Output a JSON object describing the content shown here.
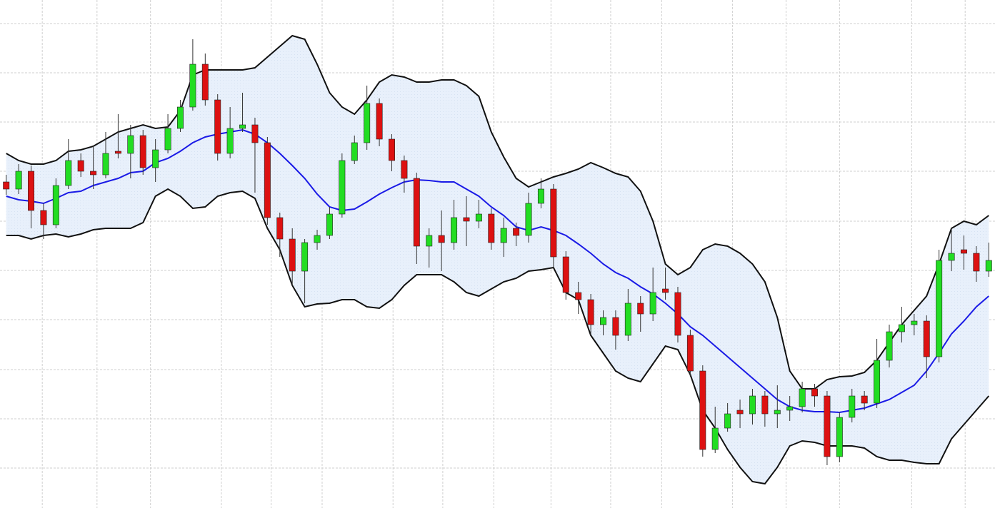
{
  "chart_data": {
    "type": "candlestick",
    "xlim": [
      -0.5,
      79.5
    ],
    "ylim": [
      0,
      712
    ],
    "xticks": [
      2.9,
      7.3,
      11.6,
      17.3,
      21.3,
      25.4,
      31.1,
      35.1,
      39.2,
      43.8,
      48.6,
      52.7,
      58.4,
      62.7,
      67.0,
      72.8,
      77.1
    ],
    "yticks": [
      56,
      125,
      194,
      264,
      333,
      402,
      472,
      541,
      610,
      679
    ],
    "grid": true,
    "up_color": "#22dd22",
    "down_color": "#dd1111",
    "open": [
      457,
      447,
      472,
      417,
      397,
      452,
      487,
      472,
      467,
      500,
      497,
      522,
      477,
      502,
      532,
      562,
      622,
      572,
      497,
      532,
      537,
      512,
      407,
      377,
      332,
      372,
      382,
      412,
      487,
      512,
      567,
      517,
      487,
      462,
      367,
      382,
      372,
      407,
      402,
      412,
      372,
      392,
      382,
      427,
      447,
      352,
      302,
      292,
      257,
      267,
      242,
      287,
      272,
      307,
      302,
      242,
      192,
      82,
      112,
      137,
      132,
      157,
      132,
      137,
      142,
      167,
      157,
      72,
      127,
      157,
      147,
      207,
      247,
      257,
      262,
      212,
      347,
      362,
      357,
      332
    ],
    "high": [
      467,
      482,
      480,
      427,
      462,
      517,
      497,
      507,
      527,
      552,
      537,
      530,
      517,
      552,
      572,
      657,
      637,
      580,
      562,
      582,
      547,
      520,
      414,
      392,
      377,
      390,
      422,
      497,
      522,
      592,
      574,
      524,
      494,
      470,
      392,
      417,
      432,
      437,
      432,
      420,
      407,
      400,
      442,
      462,
      454,
      360,
      317,
      300,
      277,
      277,
      307,
      297,
      337,
      337,
      310,
      250,
      200,
      142,
      147,
      152,
      167,
      164,
      172,
      157,
      177,
      174,
      164,
      134,
      167,
      164,
      237,
      257,
      282,
      272,
      270,
      362,
      392,
      382,
      367,
      372
    ],
    "low": [
      439,
      440,
      392,
      377,
      392,
      447,
      464,
      447,
      462,
      490,
      462,
      467,
      457,
      497,
      527,
      557,
      564,
      487,
      490,
      527,
      442,
      397,
      352,
      312,
      287,
      362,
      377,
      407,
      482,
      502,
      507,
      472,
      442,
      342,
      337,
      332,
      362,
      367,
      392,
      362,
      352,
      367,
      372,
      420,
      337,
      292,
      272,
      242,
      242,
      222,
      234,
      247,
      262,
      292,
      232,
      184,
      72,
      77,
      107,
      112,
      117,
      114,
      112,
      122,
      134,
      142,
      60,
      64,
      120,
      137,
      140,
      197,
      232,
      242,
      182,
      204,
      332,
      334,
      317,
      324
    ],
    "close": [
      447,
      472,
      417,
      397,
      452,
      487,
      472,
      467,
      497,
      497,
      522,
      477,
      502,
      532,
      562,
      622,
      572,
      497,
      532,
      537,
      512,
      407,
      377,
      332,
      372,
      382,
      412,
      487,
      512,
      567,
      517,
      487,
      462,
      367,
      382,
      372,
      407,
      402,
      412,
      372,
      392,
      382,
      427,
      447,
      352,
      302,
      292,
      257,
      267,
      242,
      287,
      272,
      302,
      302,
      242,
      192,
      82,
      112,
      132,
      132,
      157,
      132,
      137,
      142,
      167,
      157,
      72,
      127,
      157,
      147,
      207,
      247,
      257,
      262,
      212,
      347,
      357,
      357,
      332,
      347
    ],
    "bands": {
      "color": "#111111",
      "middle_color": "#1a1ae6",
      "fill": "#e8f0fb",
      "upper": [
        497,
        487,
        482,
        482,
        487,
        500,
        502,
        507,
        517,
        527,
        532,
        537,
        532,
        534,
        557,
        607,
        614,
        614,
        614,
        614,
        617,
        632,
        647,
        662,
        657,
        622,
        582,
        562,
        552,
        572,
        597,
        607,
        604,
        597,
        597,
        600,
        600,
        592,
        577,
        527,
        492,
        462,
        450,
        457,
        464,
        469,
        475,
        484,
        477,
        469,
        464,
        444,
        402,
        342,
        327,
        337,
        362,
        370,
        367,
        357,
        342,
        317,
        267,
        192,
        167,
        167,
        180,
        184,
        185,
        190,
        207,
        232,
        257,
        277,
        297,
        342,
        392,
        402,
        397,
        410
      ],
      "middle": [
        437,
        432,
        430,
        427,
        434,
        442,
        444,
        452,
        457,
        462,
        470,
        472,
        484,
        490,
        500,
        512,
        520,
        524,
        527,
        530,
        524,
        512,
        497,
        480,
        462,
        440,
        422,
        417,
        419,
        429,
        440,
        449,
        457,
        460,
        459,
        457,
        457,
        447,
        437,
        422,
        410,
        394,
        389,
        394,
        389,
        382,
        370,
        357,
        342,
        330,
        322,
        310,
        300,
        287,
        272,
        254,
        242,
        227,
        212,
        197,
        182,
        167,
        152,
        142,
        137,
        135,
        135,
        134,
        137,
        140,
        146,
        152,
        162,
        172,
        192,
        217,
        244,
        262,
        282,
        297
      ],
      "lower": [
        382,
        382,
        377,
        382,
        384,
        380,
        384,
        390,
        392,
        392,
        392,
        400,
        437,
        447,
        437,
        420,
        422,
        437,
        442,
        444,
        434,
        392,
        362,
        312,
        282,
        286,
        287,
        292,
        292,
        282,
        280,
        292,
        312,
        327,
        327,
        327,
        317,
        302,
        297,
        307,
        317,
        322,
        332,
        334,
        337,
        302,
        292,
        242,
        217,
        192,
        182,
        177,
        202,
        227,
        222,
        187,
        137,
        112,
        82,
        57,
        37,
        34,
        57,
        87,
        94,
        92,
        87,
        87,
        87,
        84,
        72,
        67,
        67,
        64,
        62,
        62,
        97,
        117,
        137,
        157
      ]
    }
  }
}
